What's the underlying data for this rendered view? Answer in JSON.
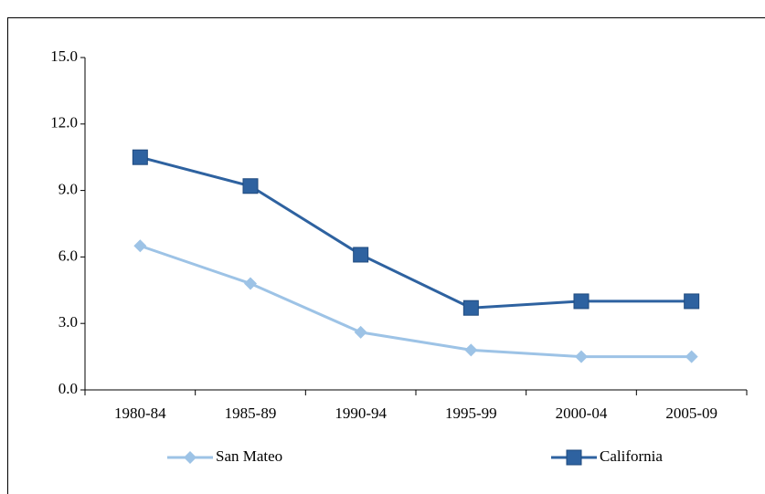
{
  "chart_data": {
    "type": "line",
    "categories": [
      "1980-84",
      "1985-89",
      "1990-94",
      "1995-99",
      "2000-04",
      "2005-09"
    ],
    "series": [
      {
        "name": "San Mateo",
        "color": "#9dc3e6",
        "marker": "diamond",
        "values": [
          6.5,
          4.8,
          2.6,
          1.8,
          1.5,
          1.5
        ]
      },
      {
        "name": "California",
        "color": "#2e62a0",
        "marker": "square",
        "values": [
          10.5,
          9.2,
          6.1,
          3.7,
          4.0,
          4.0
        ]
      }
    ],
    "ylim": [
      0,
      15
    ],
    "yticks": [
      {
        "value": 0,
        "label": "0.0"
      },
      {
        "value": 3,
        "label": "3.0"
      },
      {
        "value": 6,
        "label": "6.0"
      },
      {
        "value": 9,
        "label": "9.0"
      },
      {
        "value": 12,
        "label": "12.0"
      },
      {
        "value": 15,
        "label": "15.0"
      }
    ],
    "legend": "bottom"
  }
}
